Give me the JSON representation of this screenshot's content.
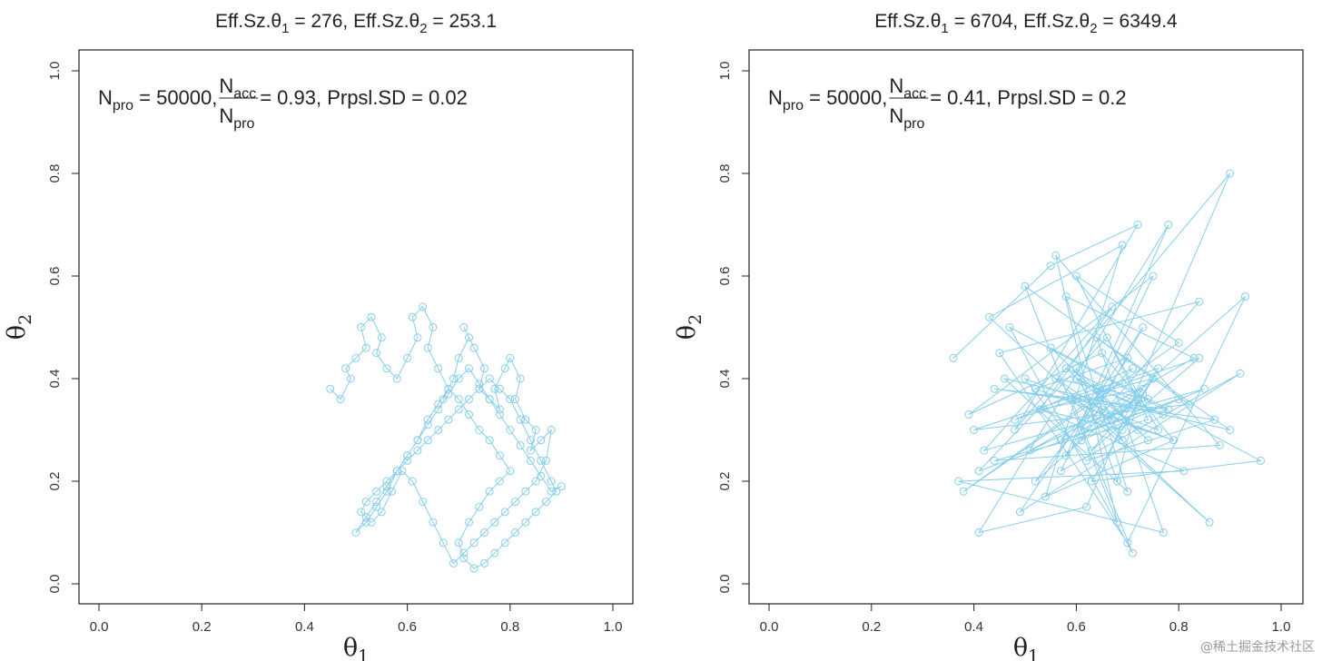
{
  "chart_data": [
    {
      "type": "scatter",
      "title": "Eff.Sz.θ₁ = 276, Eff.Sz.θ₂ = 253.1",
      "title_parts": {
        "a": "Eff.Sz.θ",
        "a_sub": "1",
        "b": " = 276, Eff.Sz.θ",
        "b_sub": "2",
        "c": " = 253.1"
      },
      "annotation": {
        "pre": "N",
        "pre_sub": "pro",
        "mid": " = 50000, ",
        "num": "N",
        "num_sub": "acc",
        "den": "N",
        "den_sub": "pro",
        "post": " = 0.93, Prpsl.SD = 0.02"
      },
      "xlabel": "θ",
      "xlabel_sub": "1",
      "ylabel": "θ",
      "ylabel_sub": "2",
      "xlim": [
        0,
        1
      ],
      "ylim": [
        0,
        1
      ],
      "xticks": [
        "0.0",
        "0.2",
        "0.4",
        "0.6",
        "0.8",
        "1.0"
      ],
      "yticks": [
        "0.0",
        "0.2",
        "0.4",
        "0.6",
        "0.8",
        "1.0"
      ],
      "series": [
        {
          "color": "#87CEEB",
          "x": [
            0.45,
            0.47,
            0.49,
            0.48,
            0.5,
            0.52,
            0.51,
            0.53,
            0.55,
            0.54,
            0.56,
            0.58,
            0.6,
            0.62,
            0.61,
            0.63,
            0.65,
            0.64,
            0.66,
            0.68,
            0.67,
            0.69,
            0.7,
            0.72,
            0.71,
            0.73,
            0.75,
            0.74,
            0.76,
            0.78,
            0.77,
            0.79,
            0.8,
            0.82,
            0.81,
            0.83,
            0.85,
            0.84,
            0.86,
            0.88,
            0.87,
            0.85,
            0.83,
            0.81,
            0.79,
            0.77,
            0.75,
            0.73,
            0.71,
            0.69,
            0.67,
            0.65,
            0.63,
            0.61,
            0.59,
            0.57,
            0.55,
            0.53,
            0.51,
            0.52,
            0.54,
            0.56,
            0.58,
            0.6,
            0.62,
            0.64,
            0.66,
            0.68,
            0.7,
            0.72,
            0.74,
            0.76,
            0.78,
            0.8,
            0.82,
            0.84,
            0.86,
            0.88,
            0.89,
            0.87,
            0.85,
            0.83,
            0.81,
            0.79,
            0.77,
            0.75,
            0.73,
            0.71,
            0.7,
            0.72,
            0.74,
            0.76,
            0.78,
            0.8,
            0.78,
            0.76,
            0.74,
            0.72,
            0.7,
            0.68,
            0.66,
            0.64,
            0.62,
            0.6,
            0.58,
            0.56,
            0.54,
            0.52,
            0.5,
            0.52,
            0.54,
            0.56,
            0.58,
            0.6,
            0.62,
            0.64,
            0.66,
            0.68,
            0.7,
            0.72,
            0.74,
            0.76,
            0.78,
            0.8,
            0.82,
            0.84,
            0.86,
            0.88,
            0.9
          ],
          "y": [
            0.38,
            0.36,
            0.4,
            0.42,
            0.44,
            0.46,
            0.5,
            0.52,
            0.48,
            0.45,
            0.42,
            0.4,
            0.44,
            0.48,
            0.52,
            0.54,
            0.5,
            0.46,
            0.42,
            0.38,
            0.36,
            0.4,
            0.44,
            0.48,
            0.5,
            0.46,
            0.42,
            0.38,
            0.36,
            0.34,
            0.38,
            0.42,
            0.44,
            0.4,
            0.36,
            0.32,
            0.3,
            0.26,
            0.28,
            0.3,
            0.24,
            0.2,
            0.18,
            0.16,
            0.14,
            0.12,
            0.1,
            0.08,
            0.06,
            0.04,
            0.08,
            0.12,
            0.16,
            0.2,
            0.22,
            0.18,
            0.14,
            0.12,
            0.14,
            0.16,
            0.18,
            0.2,
            0.22,
            0.24,
            0.26,
            0.28,
            0.3,
            0.32,
            0.34,
            0.36,
            0.38,
            0.4,
            0.38,
            0.36,
            0.32,
            0.28,
            0.24,
            0.2,
            0.18,
            0.16,
            0.14,
            0.12,
            0.1,
            0.08,
            0.06,
            0.04,
            0.03,
            0.05,
            0.08,
            0.12,
            0.15,
            0.18,
            0.2,
            0.22,
            0.25,
            0.28,
            0.3,
            0.33,
            0.36,
            0.38,
            0.35,
            0.32,
            0.28,
            0.25,
            0.22,
            0.18,
            0.15,
            0.12,
            0.1,
            0.13,
            0.16,
            0.19,
            0.22,
            0.25,
            0.28,
            0.31,
            0.34,
            0.37,
            0.4,
            0.42,
            0.39,
            0.36,
            0.33,
            0.3,
            0.27,
            0.24,
            0.21,
            0.18,
            0.19
          ]
        }
      ]
    },
    {
      "type": "scatter",
      "title": "Eff.Sz.θ₁ = 6704, Eff.Sz.θ₂ = 6349.4",
      "title_parts": {
        "a": "Eff.Sz.θ",
        "a_sub": "1",
        "b": " = 6704, Eff.Sz.θ",
        "b_sub": "2",
        "c": " = 6349.4"
      },
      "annotation": {
        "pre": "N",
        "pre_sub": "pro",
        "mid": " = 50000, ",
        "num": "N",
        "num_sub": "acc",
        "den": "N",
        "den_sub": "pro",
        "post": " = 0.41, Prpsl.SD = 0.2"
      },
      "xlabel": "θ",
      "xlabel_sub": "1",
      "ylabel": "θ",
      "ylabel_sub": "2",
      "xlim": [
        0,
        1
      ],
      "ylim": [
        0,
        1
      ],
      "xticks": [
        "0.0",
        "0.2",
        "0.4",
        "0.6",
        "0.8",
        "1.0"
      ],
      "yticks": [
        "0.0",
        "0.2",
        "0.4",
        "0.6",
        "0.8",
        "1.0"
      ],
      "series": [
        {
          "color": "#87CEEB",
          "x": [
            0.36,
            0.55,
            0.72,
            0.48,
            0.9,
            0.62,
            0.41,
            0.78,
            0.58,
            0.84,
            0.45,
            0.7,
            0.93,
            0.52,
            0.66,
            0.38,
            0.8,
            0.6,
            0.74,
            0.44,
            0.88,
            0.56,
            0.68,
            0.5,
            0.82,
            0.4,
            0.76,
            0.63,
            0.96,
            0.47,
            0.71,
            0.59,
            0.86,
            0.43,
            0.69,
            0.54,
            0.79,
            0.65,
            0.39,
            0.75,
            0.57,
            0.92,
            0.49,
            0.73,
            0.61,
            0.85,
            0.42,
            0.67,
            0.53,
            0.81,
            0.37,
            0.77,
            0.64,
            0.9,
            0.46,
            0.7,
            0.58,
            0.83,
            0.51,
            0.72,
            0.68,
            0.6,
            0.74,
            0.55,
            0.78,
            0.44,
            0.87,
            0.62,
            0.5,
            0.76,
            0.66,
            0.41,
            0.8,
            0.57,
            0.71,
            0.48,
            0.84,
            0.63,
            0.73,
            0.53,
            0.69,
            0.75,
            0.59,
            0.67,
            0.79,
            0.52,
            0.7,
            0.61,
            0.74,
            0.56,
            0.65,
            0.72,
            0.58,
            0.77,
            0.64,
            0.69,
            0.6,
            0.71,
            0.66,
            0.73
          ],
          "y": [
            0.44,
            0.62,
            0.7,
            0.3,
            0.8,
            0.15,
            0.1,
            0.7,
            0.25,
            0.55,
            0.45,
            0.08,
            0.56,
            0.2,
            0.38,
            0.18,
            0.47,
            0.6,
            0.32,
            0.24,
            0.27,
            0.64,
            0.12,
            0.58,
            0.35,
            0.3,
            0.42,
            0.2,
            0.24,
            0.5,
            0.06,
            0.36,
            0.12,
            0.52,
            0.66,
            0.17,
            0.28,
            0.45,
            0.33,
            0.6,
            0.22,
            0.41,
            0.14,
            0.5,
            0.28,
            0.38,
            0.26,
            0.54,
            0.34,
            0.22,
            0.2,
            0.1,
            0.48,
            0.3,
            0.4,
            0.18,
            0.56,
            0.44,
            0.26,
            0.36,
            0.2,
            0.42,
            0.28,
            0.46,
            0.34,
            0.38,
            0.32,
            0.24,
            0.4,
            0.3,
            0.48,
            0.22,
            0.36,
            0.28,
            0.42,
            0.32,
            0.44,
            0.26,
            0.38,
            0.34,
            0.3,
            0.4,
            0.36,
            0.32,
            0.28,
            0.38,
            0.44,
            0.3,
            0.36,
            0.4,
            0.34,
            0.3,
            0.42,
            0.33,
            0.38,
            0.28,
            0.4,
            0.35,
            0.32,
            0.37
          ]
        }
      ]
    }
  ],
  "watermark": "@稀土掘金技术社区"
}
